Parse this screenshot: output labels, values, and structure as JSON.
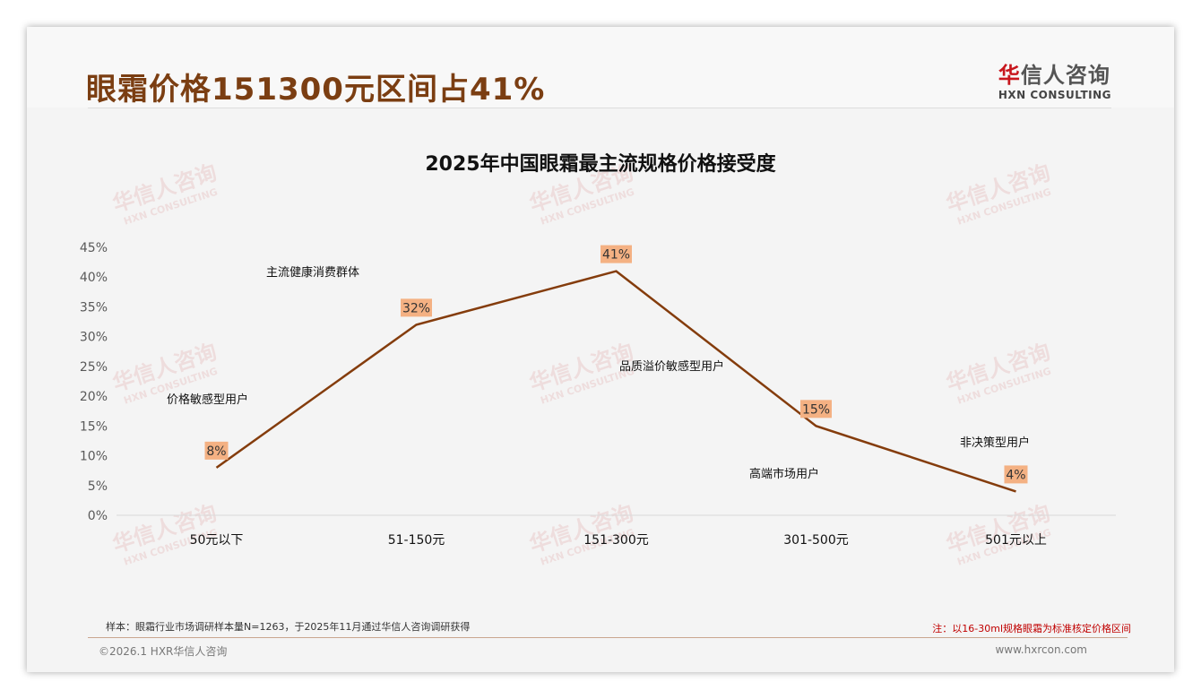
{
  "header": {
    "title": "眼霜价格151300元区间占41%",
    "logo_cn_mark": "华",
    "logo_cn_rest": "信人咨询",
    "logo_en": "HXN CONSULTING"
  },
  "watermark": {
    "cn": "华信人咨询",
    "en": "HXN CONSULTING"
  },
  "chart_data": {
    "type": "line",
    "title": "2025年中国眼霜最主流规格价格接受度",
    "categories": [
      "50元以下",
      "51-150元",
      "151-300元",
      "301-500元",
      "501元以上"
    ],
    "values": [
      8,
      32,
      41,
      15,
      4
    ],
    "data_labels": [
      "8%",
      "32%",
      "41%",
      "15%",
      "4%"
    ],
    "ylim": [
      0,
      45
    ],
    "yticks": [
      "0%",
      "5%",
      "10%",
      "15%",
      "20%",
      "25%",
      "30%",
      "35%",
      "40%",
      "45%"
    ],
    "annotations": [
      "价格敏感型用户",
      "主流健康消费群体",
      "品质溢价敏感型用户",
      "高端市场用户",
      "非决策型用户"
    ],
    "line_color": "#843c0c",
    "label_bg": "#f4b183"
  },
  "footer": {
    "sample": "样本：眼霜行业市场调研样本量N=1263，于2025年11月通过华信人咨询调研获得",
    "note": "注：以16-30ml规格眼霜为标准核定价格区间",
    "copyright": "©2026.1 HXR华信人咨询",
    "website": "www.hxrcon.com"
  }
}
